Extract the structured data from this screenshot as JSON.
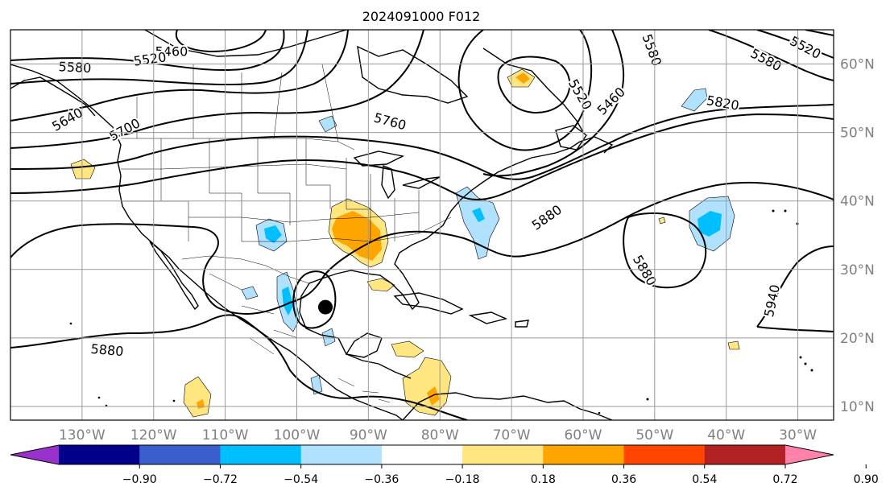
{
  "title": "2024091000 F012",
  "map": {
    "lon_range": [
      -140,
      -25
    ],
    "lat_range": [
      8,
      65
    ],
    "gridline_longitudes": [
      -130,
      -120,
      -110,
      -100,
      -90,
      -80,
      -70,
      -60,
      -50,
      -40,
      -30
    ],
    "gridline_latitudes": [
      10,
      20,
      30,
      40,
      50,
      60
    ],
    "lon_labels": [
      "130°W",
      "120°W",
      "110°W",
      "100°W",
      "90°W",
      "80°W",
      "70°W",
      "60°W",
      "50°W",
      "40°W",
      "30°W"
    ],
    "lat_labels": [
      "10°N",
      "20°N",
      "30°N",
      "40°N",
      "50°N",
      "60°N"
    ],
    "storm_marker": {
      "lon": -96,
      "lat": 24.5
    }
  },
  "contours": {
    "color": "#000000",
    "labels": [
      {
        "text": "5460",
        "lon": -117.5,
        "lat": 61.7,
        "rot": 0
      },
      {
        "text": "5520",
        "lon": -120.5,
        "lat": 60.6,
        "rot": -8
      },
      {
        "text": "5580",
        "lon": -131,
        "lat": 59.4,
        "rot": 3
      },
      {
        "text": "5640",
        "lon": -132,
        "lat": 51.8,
        "rot": -30
      },
      {
        "text": "5700",
        "lon": -124,
        "lat": 50.3,
        "rot": -28
      },
      {
        "text": "5760",
        "lon": -87,
        "lat": 51.5,
        "rot": 15
      },
      {
        "text": "5520",
        "lon": -60.5,
        "lat": 55.5,
        "rot": 60
      },
      {
        "text": "5460",
        "lon": -56,
        "lat": 54.5,
        "rot": -45
      },
      {
        "text": "5580",
        "lon": -50.5,
        "lat": 62,
        "rot": 70
      },
      {
        "text": "5580",
        "lon": -34.5,
        "lat": 60.5,
        "rot": 28
      },
      {
        "text": "5520",
        "lon": -29,
        "lat": 62.3,
        "rot": 28
      },
      {
        "text": "5820",
        "lon": -40.5,
        "lat": 54.2,
        "rot": 10
      },
      {
        "text": "5880",
        "lon": -65,
        "lat": 37.5,
        "rot": -35
      },
      {
        "text": "5880",
        "lon": -51.5,
        "lat": 29.8,
        "rot": 60
      },
      {
        "text": "5940",
        "lon": -33.5,
        "lat": 25.4,
        "rot": -78
      },
      {
        "text": "5880",
        "lon": -126.5,
        "lat": 18.1,
        "rot": 5
      }
    ]
  },
  "colorbar": {
    "ticks": [
      "−0.90",
      "−0.72",
      "−0.54",
      "−0.36",
      "−0.18",
      "0.18",
      "0.36",
      "0.54",
      "0.72",
      "0.90"
    ],
    "colors": [
      "#9932cc",
      "#00008b",
      "#3a5fcd",
      "#00bfff",
      "#b0e2ff",
      "#ffffff",
      "#ffe680",
      "#ffa500",
      "#ff4500",
      "#b22222",
      "#ff82ab"
    ]
  }
}
